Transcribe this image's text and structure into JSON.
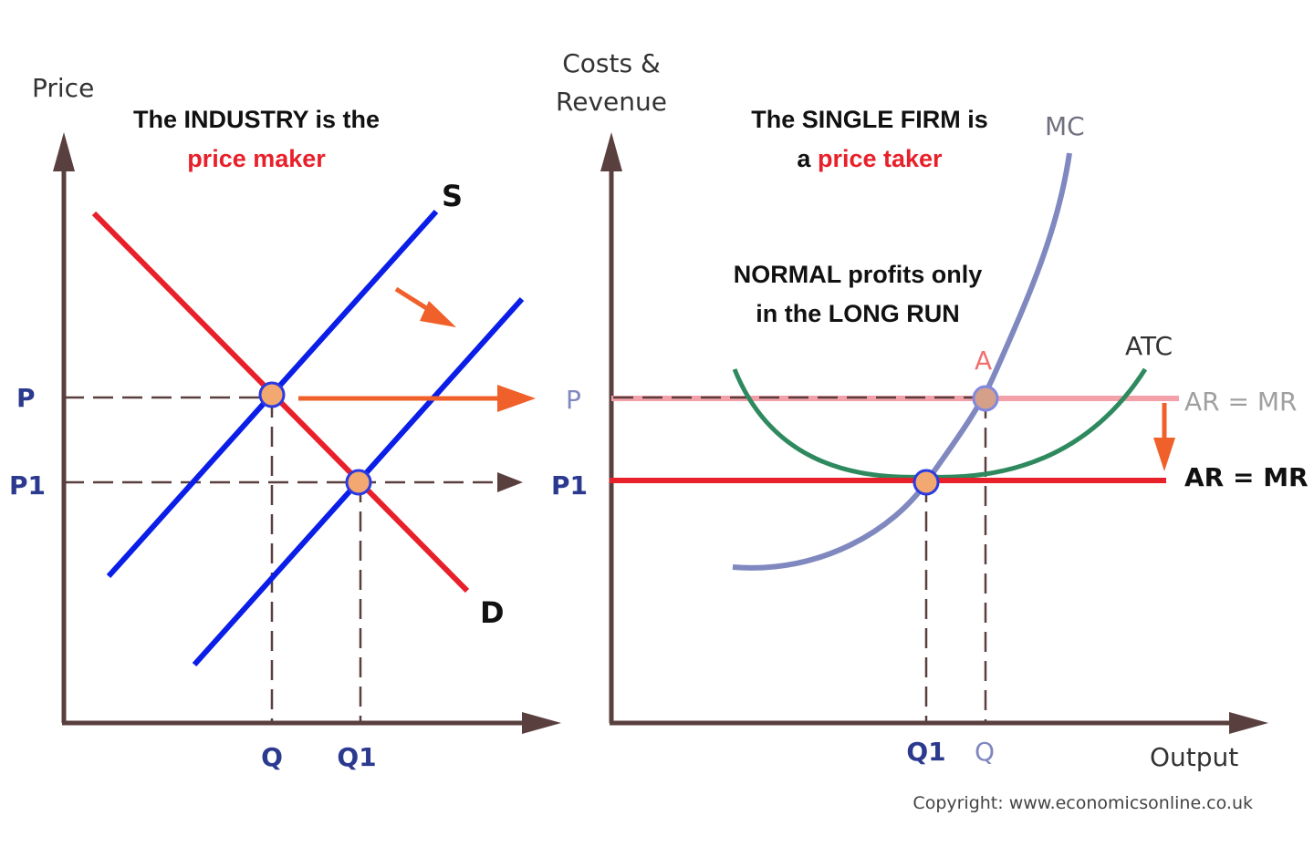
{
  "left_panel": {
    "y_axis_label": "Price",
    "title_line1": "The INDUSTRY is the",
    "title_line2": "price maker",
    "supply_label": "S",
    "demand_label": "D",
    "y_ticks": [
      "P",
      "P1"
    ],
    "x_ticks": [
      "Q",
      "Q1"
    ]
  },
  "right_panel": {
    "y_axis_label_line1": "Costs &",
    "y_axis_label_line2": "Revenue",
    "title_line1": "The SINGLE FIRM is",
    "title_line2_prefix": "a",
    "title_line2_highlight": "price taker",
    "note_line1": "NORMAL profits only",
    "note_line2": "in the LONG RUN",
    "mc_label": "MC",
    "atc_label": "ATC",
    "point_label": "A",
    "old_revenue_label": "AR = MR",
    "new_revenue_label": "AR = MR",
    "y_ticks": [
      "P",
      "P1"
    ],
    "x_ticks": [
      "Q1",
      "Q"
    ],
    "x_axis_label": "Output"
  },
  "copyright": "Copyright: www.economicsonline.co.uk",
  "colors": {
    "axis": "#5a3f3f",
    "demand": "#e8202a",
    "supply": "#0a1ee8",
    "arrow": "#f0602a",
    "mc": "#8088c0",
    "atc": "#2e8a5e",
    "old_ar": "#f4a0a8",
    "new_ar": "#e8202a",
    "point_fill": "#f2a870",
    "highlight_text": "#e8202a"
  }
}
